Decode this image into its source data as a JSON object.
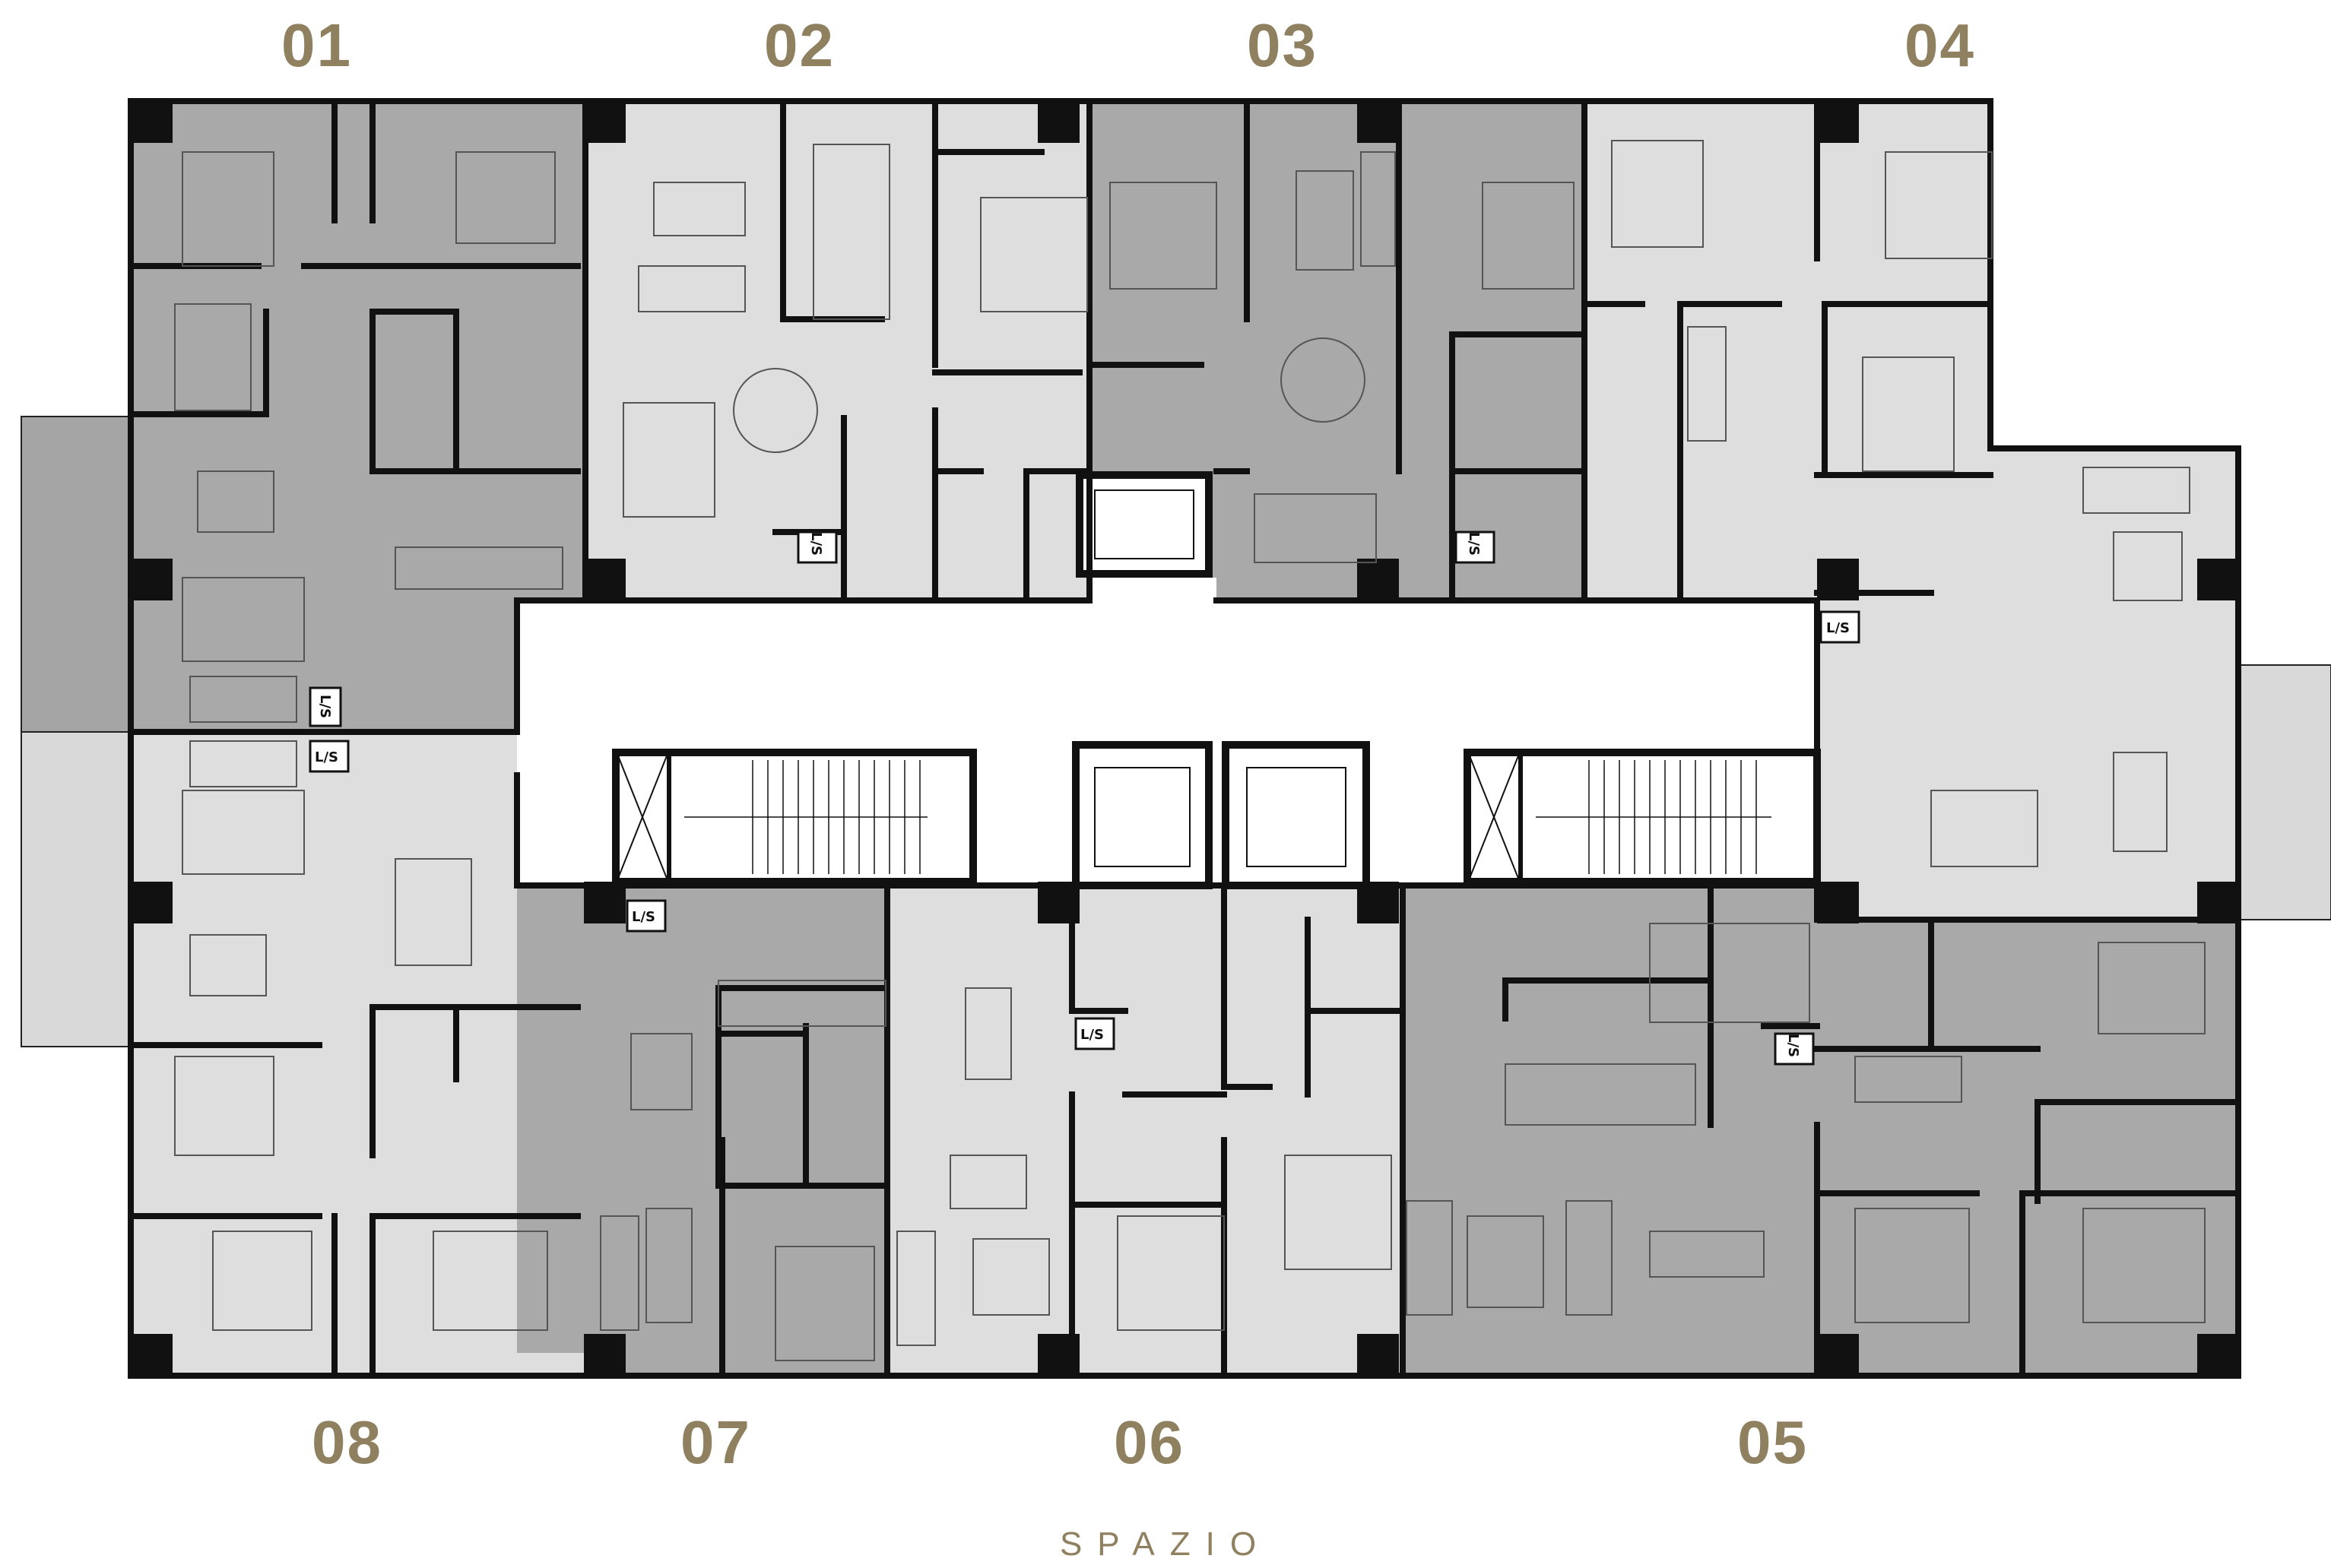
{
  "units": {
    "u01": "01",
    "u02": "02",
    "u03": "03",
    "u04": "04",
    "u05": "05",
    "u06": "06",
    "u07": "07",
    "u08": "08"
  },
  "brand": "SPAZIO",
  "laundry_tag": "L/S",
  "colors": {
    "label": "#8f8060",
    "dark_unit": "#a9a9a9",
    "light_unit": "#dedede",
    "corridor": "#ffffff",
    "wall": "#111111"
  }
}
